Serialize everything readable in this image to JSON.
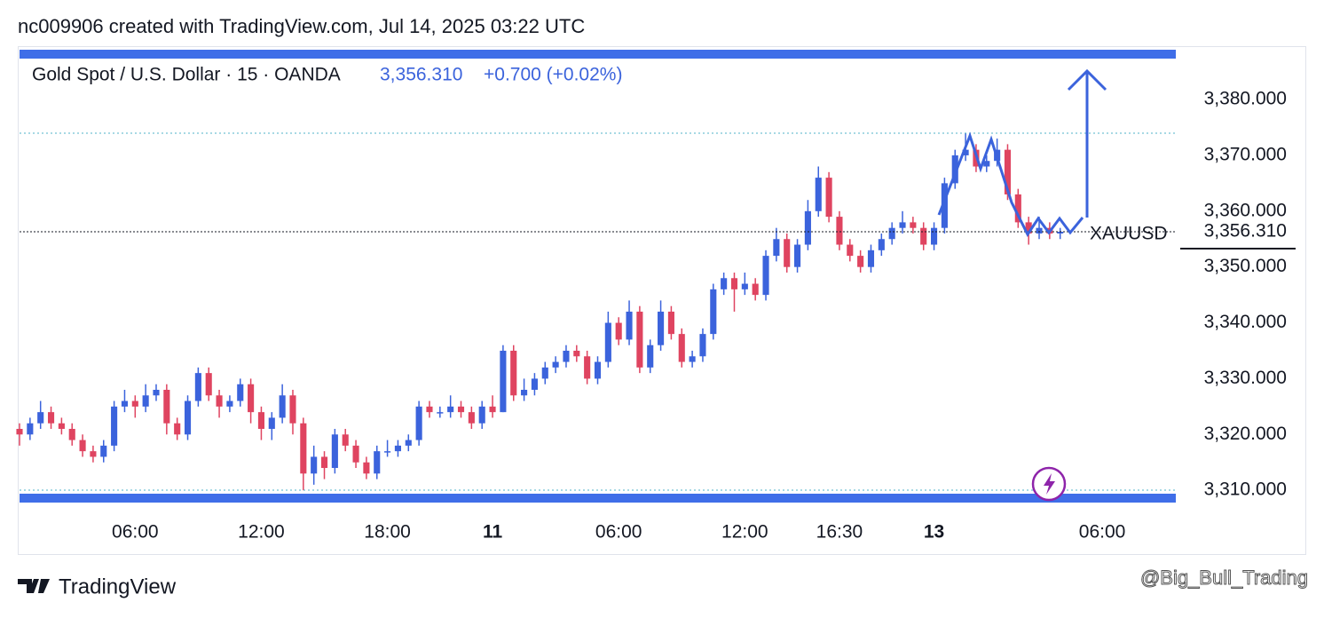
{
  "header": "nc009906 created with TradingView.com, Jul 14, 2025 03:22 UTC",
  "chart_data": {
    "type": "candlestick",
    "title": "Gold Spot / U.S. Dollar · 15 · OANDA",
    "change": "+0.700 (+0.02%)",
    "symbol": "XAUUSD",
    "last_price": {
      "value": 3356.31,
      "label": "3,356.310"
    },
    "up_color": "#3b63dc",
    "down_color": "#df4460",
    "x": [
      0,
      1,
      2,
      3,
      4,
      5,
      6,
      7,
      8,
      9,
      10,
      11,
      12,
      13,
      14,
      15,
      16,
      17,
      18,
      19,
      20,
      21,
      22,
      23,
      24,
      25,
      26,
      27,
      28,
      29,
      30,
      31,
      32,
      33,
      34,
      35,
      36,
      37,
      38,
      39,
      40,
      41,
      42,
      43,
      44,
      45,
      46,
      47,
      48,
      49,
      50,
      51,
      52,
      53,
      54,
      55,
      56,
      57,
      58,
      59,
      60,
      61,
      62,
      63,
      64,
      65,
      66,
      67,
      68,
      69,
      70,
      71,
      72,
      73,
      74,
      75,
      76,
      77,
      78,
      79,
      80,
      81,
      82,
      83,
      84,
      85,
      86,
      87,
      88,
      89,
      90,
      91,
      92,
      93,
      94,
      95,
      96,
      97,
      98,
      99
    ],
    "ohlc": [
      [
        3321,
        3322,
        3318,
        3320
      ],
      [
        3320,
        3323,
        3319,
        3322
      ],
      [
        3322,
        3326,
        3321,
        3324
      ],
      [
        3324,
        3325,
        3321,
        3322
      ],
      [
        3322,
        3323,
        3320,
        3321
      ],
      [
        3321,
        3322,
        3318,
        3319
      ],
      [
        3319,
        3320,
        3316,
        3317
      ],
      [
        3317,
        3318,
        3315,
        3316
      ],
      [
        3316,
        3319,
        3315,
        3318
      ],
      [
        3318,
        3326,
        3317,
        3325
      ],
      [
        3325,
        3328,
        3324,
        3326
      ],
      [
        3326,
        3327,
        3323,
        3325
      ],
      [
        3325,
        3329,
        3324,
        3327
      ],
      [
        3327,
        3329,
        3326,
        3328
      ],
      [
        3328,
        3329,
        3320,
        3322
      ],
      [
        3322,
        3323,
        3319,
        3320
      ],
      [
        3320,
        3327,
        3319,
        3326
      ],
      [
        3326,
        3332,
        3325,
        3331
      ],
      [
        3331,
        3332,
        3326,
        3327
      ],
      [
        3327,
        3328,
        3323,
        3325
      ],
      [
        3325,
        3327,
        3324,
        3326
      ],
      [
        3326,
        3330,
        3325,
        3329
      ],
      [
        3329,
        3330,
        3322,
        3324
      ],
      [
        3324,
        3325,
        3319,
        3321
      ],
      [
        3321,
        3324,
        3319,
        3323
      ],
      [
        3323,
        3329,
        3322,
        3327
      ],
      [
        3327,
        3328,
        3320,
        3322
      ],
      [
        3322,
        3323,
        3310,
        3313
      ],
      [
        3313,
        3318,
        3311,
        3316
      ],
      [
        3316,
        3317,
        3312,
        3314
      ],
      [
        3314,
        3321,
        3313,
        3320
      ],
      [
        3320,
        3321,
        3317,
        3318
      ],
      [
        3318,
        3319,
        3314,
        3315
      ],
      [
        3315,
        3316,
        3312,
        3313
      ],
      [
        3313,
        3318,
        3312,
        3317
      ],
      [
        3317,
        3319,
        3316,
        3317
      ],
      [
        3317,
        3319,
        3316,
        3318
      ],
      [
        3318,
        3320,
        3317,
        3319
      ],
      [
        3319,
        3326,
        3318,
        3325
      ],
      [
        3325,
        3326,
        3323,
        3324
      ],
      [
        3324,
        3325,
        3323,
        3324
      ],
      [
        3324,
        3327,
        3323,
        3325
      ],
      [
        3325,
        3326,
        3323,
        3324
      ],
      [
        3324,
        3325,
        3321,
        3322
      ],
      [
        3322,
        3326,
        3321,
        3325
      ],
      [
        3325,
        3327,
        3323,
        3324
      ],
      [
        3324,
        3336,
        3324,
        3335
      ],
      [
        3335,
        3336,
        3326,
        3327
      ],
      [
        3327,
        3330,
        3326,
        3328
      ],
      [
        3328,
        3331,
        3327,
        3330
      ],
      [
        3330,
        3333,
        3329,
        3332
      ],
      [
        3332,
        3334,
        3331,
        3333
      ],
      [
        3333,
        3336,
        3332,
        3335
      ],
      [
        3335,
        3336,
        3333,
        3334
      ],
      [
        3334,
        3335,
        3329,
        3330
      ],
      [
        3330,
        3334,
        3329,
        3333
      ],
      [
        3333,
        3342,
        3332,
        3340
      ],
      [
        3340,
        3341,
        3336,
        3337
      ],
      [
        3337,
        3344,
        3336,
        3342
      ],
      [
        3342,
        3343,
        3331,
        3332
      ],
      [
        3332,
        3337,
        3331,
        3336
      ],
      [
        3336,
        3344,
        3335,
        3342
      ],
      [
        3342,
        3343,
        3337,
        3338
      ],
      [
        3338,
        3339,
        3332,
        3333
      ],
      [
        3333,
        3335,
        3332,
        3334
      ],
      [
        3334,
        3339,
        3333,
        3338
      ],
      [
        3338,
        3347,
        3337,
        3346
      ],
      [
        3346,
        3349,
        3345,
        3348
      ],
      [
        3348,
        3349,
        3342,
        3346
      ],
      [
        3346,
        3349,
        3345,
        3347
      ],
      [
        3347,
        3348,
        3344,
        3345
      ],
      [
        3345,
        3353,
        3344,
        3352
      ],
      [
        3352,
        3357,
        3351,
        3355
      ],
      [
        3355,
        3356,
        3349,
        3350
      ],
      [
        3350,
        3355,
        3349,
        3354
      ],
      [
        3354,
        3362,
        3353,
        3360
      ],
      [
        3360,
        3368,
        3359,
        3366
      ],
      [
        3366,
        3367,
        3358,
        3359
      ],
      [
        3359,
        3360,
        3353,
        3354
      ],
      [
        3354,
        3355,
        3351,
        3352
      ],
      [
        3352,
        3353,
        3349,
        3350
      ],
      [
        3350,
        3354,
        3349,
        3353
      ],
      [
        3353,
        3356,
        3352,
        3355
      ],
      [
        3355,
        3358,
        3354,
        3357
      ],
      [
        3357,
        3360,
        3356,
        3358
      ],
      [
        3358,
        3359,
        3356,
        3357
      ],
      [
        3357,
        3358,
        3353,
        3354
      ],
      [
        3354,
        3358,
        3353,
        3357
      ],
      [
        3357,
        3366,
        3356,
        3365
      ],
      [
        3365,
        3371,
        3364,
        3370
      ],
      [
        3370,
        3374,
        3369,
        3371
      ],
      [
        3371,
        3372,
        3367,
        3368
      ],
      [
        3368,
        3370,
        3367,
        3369
      ],
      [
        3369,
        3373,
        3368,
        3371
      ],
      [
        3371,
        3372,
        3362,
        3363
      ],
      [
        3363,
        3364,
        3357,
        3358
      ],
      [
        3358,
        3359,
        3354,
        3356
      ],
      [
        3356,
        3359,
        3355,
        3357
      ],
      [
        3357,
        3358,
        3355,
        3356
      ],
      [
        3356,
        3357,
        3355,
        3356.31
      ]
    ],
    "xlim": [
      0,
      110
    ],
    "xticks": [
      {
        "value": 11,
        "label": "06:00"
      },
      {
        "value": 23,
        "label": "12:00"
      },
      {
        "value": 35,
        "label": "18:00"
      },
      {
        "value": 45,
        "label": "11"
      },
      {
        "value": 57,
        "label": "06:00"
      },
      {
        "value": 69,
        "label": "12:00"
      },
      {
        "value": 78,
        "label": "16:30"
      },
      {
        "value": 87,
        "label": "13"
      },
      {
        "value": 103,
        "label": "06:00"
      }
    ],
    "ylim": [
      3307.8,
      3388.6
    ],
    "yticks": [
      {
        "value": 3310,
        "label": "3,310.000"
      },
      {
        "value": 3320,
        "label": "3,320.000"
      },
      {
        "value": 3330,
        "label": "3,330.000"
      },
      {
        "value": 3340,
        "label": "3,340.000"
      },
      {
        "value": 3350,
        "label": "3,350.000"
      },
      {
        "value": 3360,
        "label": "3,360.000"
      },
      {
        "value": 3370,
        "label": "3,370.000"
      },
      {
        "value": 3380,
        "label": "3,380.000"
      }
    ]
  },
  "footer": {
    "brand": "TradingView",
    "watermark": "@Big_Bull_Trading"
  }
}
